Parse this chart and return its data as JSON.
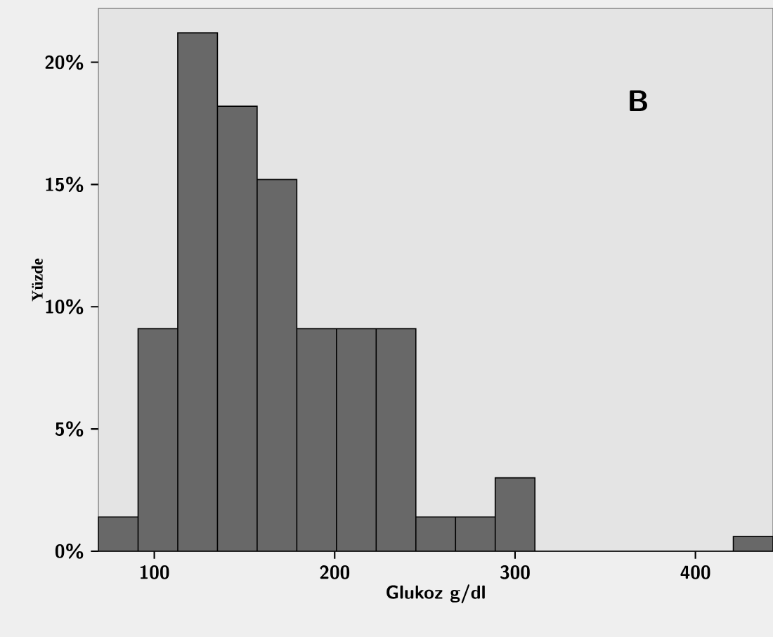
{
  "chart_data": {
    "type": "histogram",
    "xlabel": "Glukoz g/dl",
    "ylabel": "Yüzde",
    "annotations": [
      "B"
    ],
    "bins": [
      69,
      91,
      113,
      135,
      157,
      179,
      201,
      223,
      245,
      267,
      289,
      311,
      333,
      355,
      377,
      399,
      421,
      443
    ],
    "values": [
      1.4,
      9.1,
      21.2,
      18.2,
      15.2,
      9.1,
      9.1,
      9.1,
      1.4,
      1.4,
      3.0,
      0,
      0,
      0,
      0,
      0,
      0.6
    ],
    "color": "#686868",
    "xlim": [
      69,
      443
    ],
    "ylim": [
      0,
      22.2
    ],
    "xticks": [
      100,
      200,
      300,
      400
    ],
    "yticks": [
      {
        "value": 0,
        "label": "0%"
      },
      {
        "value": 5,
        "label": "5%"
      },
      {
        "value": 10,
        "label": "10%"
      },
      {
        "value": 15,
        "label": "15%"
      },
      {
        "value": 20,
        "label": "20%"
      }
    ],
    "grid": false
  }
}
